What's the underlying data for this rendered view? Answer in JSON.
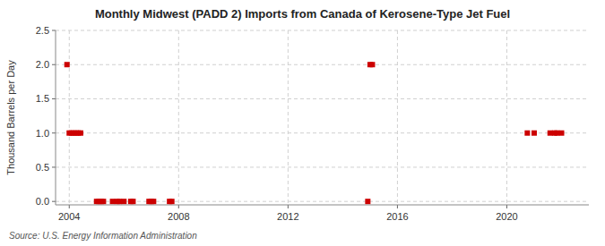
{
  "chart_data": {
    "type": "scatter",
    "title": "Monthly Midwest (PADD 2) Imports from Canada of Kerosene-Type Jet Fuel",
    "ylabel": "Thousand Barrels per Day",
    "annotations": [
      "Source: U.S. Energy Information Administration"
    ],
    "x": [
      2003.917,
      2004.0,
      2004.083,
      2004.167,
      2004.25,
      2004.333,
      2004.417,
      2005.0,
      2005.083,
      2005.167,
      2005.25,
      2005.583,
      2005.75,
      2005.833,
      2006.0,
      2006.25,
      2006.333,
      2006.917,
      2007.0,
      2007.083,
      2007.667,
      2007.75,
      2014.917,
      2015.0,
      2015.083,
      2020.75,
      2021.0,
      2021.583,
      2021.75,
      2021.833,
      2022.0
    ],
    "values": [
      2.0,
      1.0,
      1.0,
      1.0,
      1.0,
      1.0,
      1.0,
      0.0,
      0.0,
      0.0,
      0.0,
      0.0,
      0.0,
      0.0,
      0.0,
      0.0,
      0.0,
      0.0,
      0.0,
      0.0,
      0.0,
      0.0,
      0.0,
      2.0,
      2.0,
      1.0,
      1.0,
      1.0,
      1.0,
      1.0,
      1.0
    ],
    "color": "#cc0000",
    "marker": "square",
    "xlim": [
      2003.5,
      2023.0
    ],
    "ylim": [
      -0.05,
      2.5
    ],
    "xticks": [
      2004,
      2008,
      2012,
      2016,
      2020
    ],
    "yticks": [
      {
        "value": 0.0,
        "label": "0.0"
      },
      0.5,
      {
        "value": 1.0,
        "label": "1.0"
      },
      1.5,
      {
        "value": 2.0,
        "label": "2.0"
      },
      2.5
    ],
    "grid": true
  }
}
